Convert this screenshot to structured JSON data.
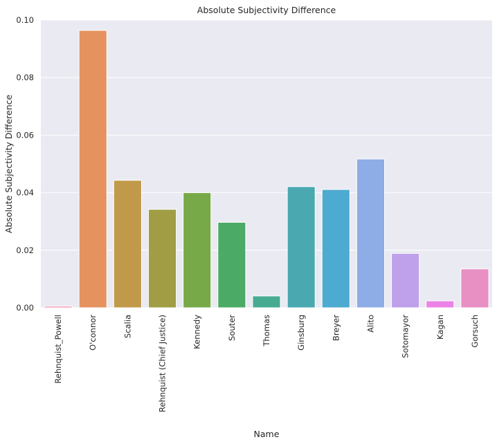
{
  "chart_data": {
    "type": "bar",
    "title": "Absolute Subjectivity Difference",
    "xlabel": "Name",
    "ylabel": "Absolute Subjectivity Difference",
    "categories": [
      "Rehnquist_Powell",
      "O'connor",
      "Scalia",
      "Rehnquist (Chief Justice)",
      "Kennedy",
      "Souter",
      "Thomas",
      "Ginsburg",
      "Breyer",
      "Alito",
      "Sotomayor",
      "Kagan",
      "Gorsuch"
    ],
    "values": [
      0.0005,
      0.0964,
      0.0443,
      0.0342,
      0.04,
      0.0297,
      0.0041,
      0.0421,
      0.0411,
      0.0517,
      0.0189,
      0.0024,
      0.0135
    ],
    "colors": [
      "#f37a9f",
      "#e5925f",
      "#c09a4a",
      "#a09d44",
      "#77a948",
      "#4bab66",
      "#47ab92",
      "#4aa9b0",
      "#4daad0",
      "#8eace5",
      "#bfa0ea",
      "#ec82e8",
      "#e88fc4"
    ],
    "yticks": [
      "0.00",
      "0.02",
      "0.04",
      "0.06",
      "0.08",
      "0.10"
    ],
    "ylim": [
      0,
      0.1
    ],
    "grid": true,
    "background": "#eaeaf2"
  }
}
